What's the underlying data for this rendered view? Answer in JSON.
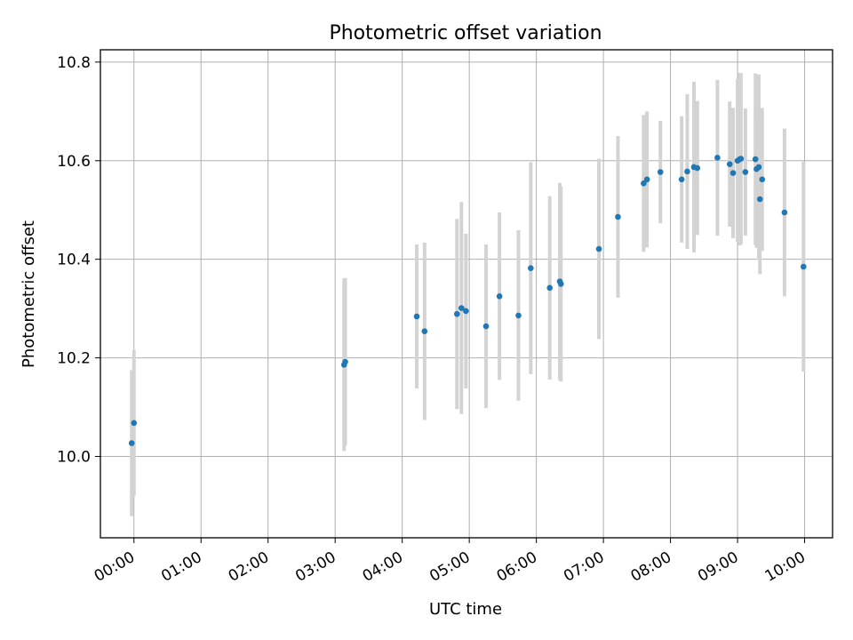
{
  "chart_data": {
    "type": "scatter",
    "title": "Photometric offset variation",
    "xlabel": "UTC time",
    "ylabel": "Photometric offset",
    "x_unit": "UTC time (HH:MM)",
    "xlim": [
      "23:30",
      "10:25"
    ],
    "ylim": [
      9.835,
      10.825
    ],
    "xticks": [
      "00:00",
      "01:00",
      "02:00",
      "03:00",
      "04:00",
      "05:00",
      "06:00",
      "07:00",
      "08:00",
      "09:00",
      "10:00"
    ],
    "yticks": [
      10.0,
      10.2,
      10.4,
      10.6,
      10.8
    ],
    "ytick_labels": [
      "10.0",
      "10.2",
      "10.4",
      "10.6",
      "10.8"
    ],
    "grid": true,
    "colors": {
      "points": "#1f77b4",
      "errorbars": "#d3d3d3"
    },
    "points": [
      {
        "x": "23:58",
        "y": 10.027,
        "err": 0.148
      },
      {
        "x": "00:00",
        "y": 10.068,
        "err": 0.148
      },
      {
        "x": "03:08",
        "y": 10.186,
        "err": 0.175
      },
      {
        "x": "03:09",
        "y": 10.192,
        "err": 0.17
      },
      {
        "x": "04:13",
        "y": 10.284,
        "err": 0.146
      },
      {
        "x": "04:20",
        "y": 10.254,
        "err": 0.18
      },
      {
        "x": "04:49",
        "y": 10.289,
        "err": 0.193
      },
      {
        "x": "04:53",
        "y": 10.301,
        "err": 0.215
      },
      {
        "x": "04:57",
        "y": 10.295,
        "err": 0.157
      },
      {
        "x": "05:15",
        "y": 10.264,
        "err": 0.166
      },
      {
        "x": "05:27",
        "y": 10.325,
        "err": 0.17
      },
      {
        "x": "05:44",
        "y": 10.286,
        "err": 0.173
      },
      {
        "x": "05:55",
        "y": 10.382,
        "err": 0.215
      },
      {
        "x": "06:12",
        "y": 10.342,
        "err": 0.186
      },
      {
        "x": "06:21",
        "y": 10.355,
        "err": 0.2
      },
      {
        "x": "06:22",
        "y": 10.35,
        "err": 0.198
      },
      {
        "x": "06:56",
        "y": 10.421,
        "err": 0.183
      },
      {
        "x": "07:13",
        "y": 10.486,
        "err": 0.164
      },
      {
        "x": "07:36",
        "y": 10.554,
        "err": 0.139
      },
      {
        "x": "07:39",
        "y": 10.562,
        "err": 0.138
      },
      {
        "x": "07:51",
        "y": 10.577,
        "err": 0.104
      },
      {
        "x": "08:10",
        "y": 10.562,
        "err": 0.128
      },
      {
        "x": "08:15",
        "y": 10.578,
        "err": 0.157
      },
      {
        "x": "08:21",
        "y": 10.587,
        "err": 0.173
      },
      {
        "x": "08:24",
        "y": 10.585,
        "err": 0.136
      },
      {
        "x": "08:42",
        "y": 10.606,
        "err": 0.158
      },
      {
        "x": "08:53",
        "y": 10.593,
        "err": 0.127
      },
      {
        "x": "08:56",
        "y": 10.575,
        "err": 0.132
      },
      {
        "x": "09:00",
        "y": 10.6,
        "err": 0.165
      },
      {
        "x": "09:02",
        "y": 10.603,
        "err": 0.175
      },
      {
        "x": "09:03",
        "y": 10.604,
        "err": 0.174
      },
      {
        "x": "09:07",
        "y": 10.577,
        "err": 0.129
      },
      {
        "x": "09:16",
        "y": 10.603,
        "err": 0.174
      },
      {
        "x": "09:17",
        "y": 10.583,
        "err": 0.16
      },
      {
        "x": "09:19",
        "y": 10.587,
        "err": 0.188
      },
      {
        "x": "09:20",
        "y": 10.522,
        "err": 0.152
      },
      {
        "x": "09:22",
        "y": 10.562,
        "err": 0.145
      },
      {
        "x": "09:42",
        "y": 10.495,
        "err": 0.17
      },
      {
        "x": "09:59",
        "y": 10.385,
        "err": 0.213
      }
    ]
  }
}
